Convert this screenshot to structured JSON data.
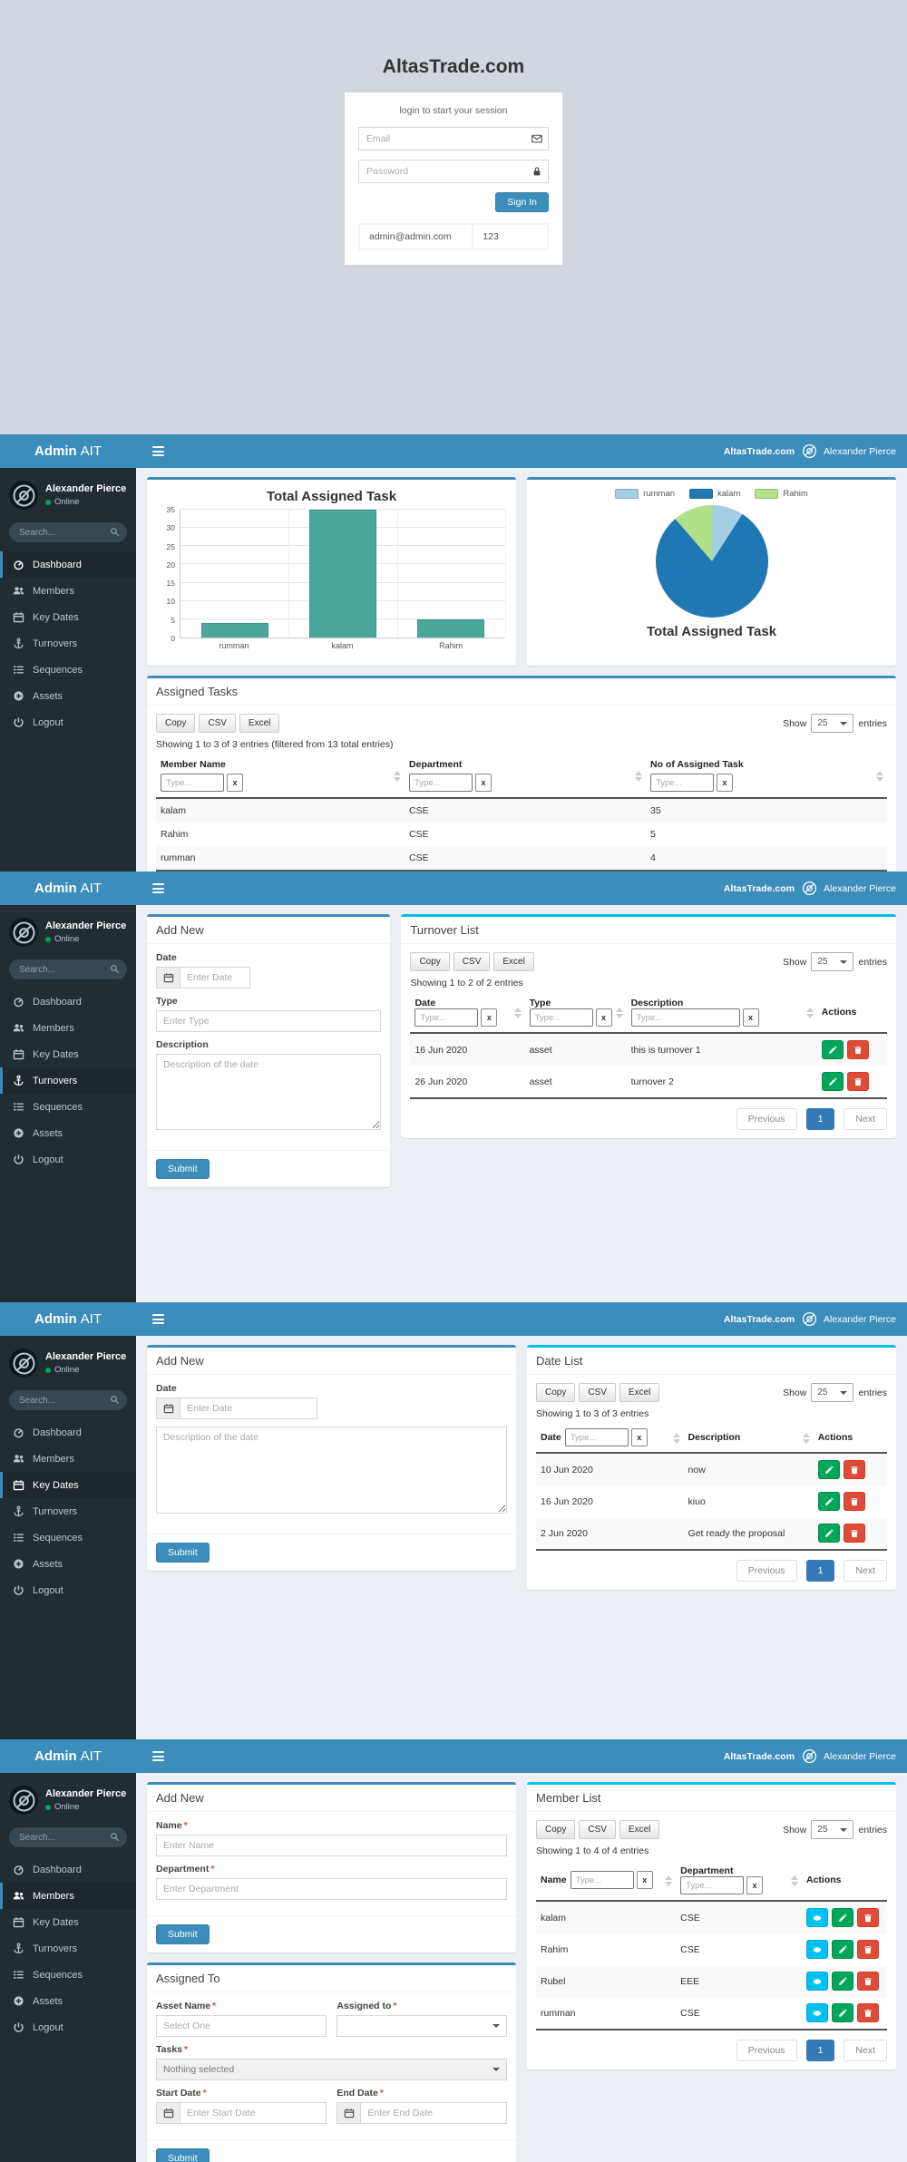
{
  "login": {
    "title": "AltasTrade.com",
    "message": "login to start your session",
    "email_placeholder": "Email",
    "password_placeholder": "Password",
    "signin_label": "Sign In",
    "hint_email": "admin@admin.com",
    "hint_password": "123"
  },
  "app": {
    "brand_bold": "Admin",
    "brand_light": "AIT",
    "site_name": "AltasTrade.com",
    "user_name": "Alexander Pierce",
    "user_status": "Online",
    "search_placeholder": "Search...",
    "required_mark": "*",
    "menu": [
      "Dashboard",
      "Members",
      "Key Dates",
      "Turnovers",
      "Sequences",
      "Assets",
      "Logout"
    ]
  },
  "datatable": {
    "copy": "Copy",
    "csv": "CSV",
    "excel": "Excel",
    "show": "Show",
    "entries": "entries",
    "page_size": "25",
    "filter_placeholder": "Type...",
    "clear": "x",
    "previous": "Previous",
    "page1": "1",
    "next": "Next",
    "actions": "Actions"
  },
  "chart_data": [
    {
      "type": "bar",
      "title": "Total Assigned Task",
      "categories": [
        "rumman",
        "kalam",
        "Rahim"
      ],
      "values": [
        4,
        35,
        5
      ],
      "xlabel": "",
      "ylabel": "",
      "ylim": [
        0,
        35
      ],
      "yticks": [
        0,
        5,
        10,
        15,
        20,
        25,
        30,
        35
      ],
      "grid": true,
      "bar_color": "#4aa79a",
      "bar_border": "#3d9488"
    },
    {
      "type": "pie",
      "title": "Total Assigned Task",
      "labels": [
        "rumman",
        "kalam",
        "Rahim"
      ],
      "values": [
        4,
        35,
        5
      ],
      "colors": [
        "#a6cee3",
        "#1f78b4",
        "#b2df8a"
      ],
      "legend_position": "top"
    }
  ],
  "dashboard": {
    "tasks_panel": {
      "title": "Assigned Tasks",
      "info": "Showing 1 to 3 of 3 entries (filtered from 13 total entries)",
      "columns": [
        "Member Name",
        "Department",
        "No of Assigned Task"
      ],
      "rows": [
        [
          "kalam",
          "CSE",
          "35"
        ],
        [
          "Rahim",
          "CSE",
          "5"
        ],
        [
          "rumman",
          "CSE",
          "4"
        ]
      ]
    }
  },
  "turnovers": {
    "form": {
      "title": "Add New",
      "date_label": "Date",
      "date_placeholder": "Enter Date",
      "type_label": "Type",
      "type_placeholder": "Enter Type",
      "desc_label": "Description",
      "desc_placeholder": "Description of the date",
      "submit": "Submit"
    },
    "list": {
      "title": "Turnover List",
      "info": "Showing 1 to 2 of 2 entries",
      "columns": [
        "Date",
        "Type",
        "Description"
      ],
      "rows": [
        [
          "16 Jun 2020",
          "asset",
          "this is turnover 1"
        ],
        [
          "26 Jun 2020",
          "asset",
          "turnover 2"
        ]
      ]
    }
  },
  "keydates": {
    "form": {
      "title": "Add New",
      "date_label": "Date",
      "date_placeholder": "Enter Date",
      "desc_label": "Description",
      "desc_placeholder": "Description of the date",
      "submit": "Submit"
    },
    "list": {
      "title": "Date List",
      "info": "Showing 1 to 3 of 3 entries",
      "columns": [
        "Date",
        "Description"
      ],
      "rows": [
        [
          "10 Jun 2020",
          "now"
        ],
        [
          "16 Jun 2020",
          "kiuo"
        ],
        [
          "2 Jun 2020",
          "Get ready the proposal"
        ]
      ]
    }
  },
  "members": {
    "form": {
      "title": "Add New",
      "name_label": "Name",
      "name_placeholder": "Enter Name",
      "dept_label": "Department",
      "dept_placeholder": "Enter Department",
      "submit": "Submit"
    },
    "assign": {
      "title": "Assigned To",
      "asset_label": "Asset Name",
      "asset_placeholder": "Select One",
      "assigned_label": "Assigned to",
      "tasks_label": "Tasks",
      "tasks_placeholder": "Nothing selected",
      "start_label": "Start Date",
      "start_placeholder": "Enter Start Date",
      "end_label": "End Date",
      "end_placeholder": "Enter End Date",
      "submit": "Submit"
    },
    "list": {
      "title": "Member List",
      "info": "Showing 1 to 4 of 4 entries",
      "columns": [
        "Name",
        "Department"
      ],
      "rows": [
        [
          "kalam",
          "CSE"
        ],
        [
          "Rahim",
          "CSE"
        ],
        [
          "Rubel",
          "EEE"
        ],
        [
          "rumman",
          "CSE"
        ]
      ]
    }
  },
  "icons": {
    "sidebar": [
      "dashboard-gauge",
      "users",
      "calendar",
      "anchor",
      "list",
      "plus-circle",
      "power"
    ],
    "login": {
      "email": "envelope",
      "password": "lock"
    },
    "actions": [
      "eye",
      "pencil",
      "trash"
    ],
    "search": "magnifier",
    "avatar": "no-image",
    "toggle": "hamburger",
    "sort": "up-down-arrows",
    "date_addon": "calendar"
  },
  "colors": {
    "accent": "#3c8dbc",
    "info": "#00c0ef",
    "success": "#00a65a",
    "danger": "#dd4b39",
    "pagination_active": "#337ab7",
    "sidebar_bg": "#222d32",
    "content_bg": "#ecf0f5",
    "login_bg": "#d2d6de"
  }
}
